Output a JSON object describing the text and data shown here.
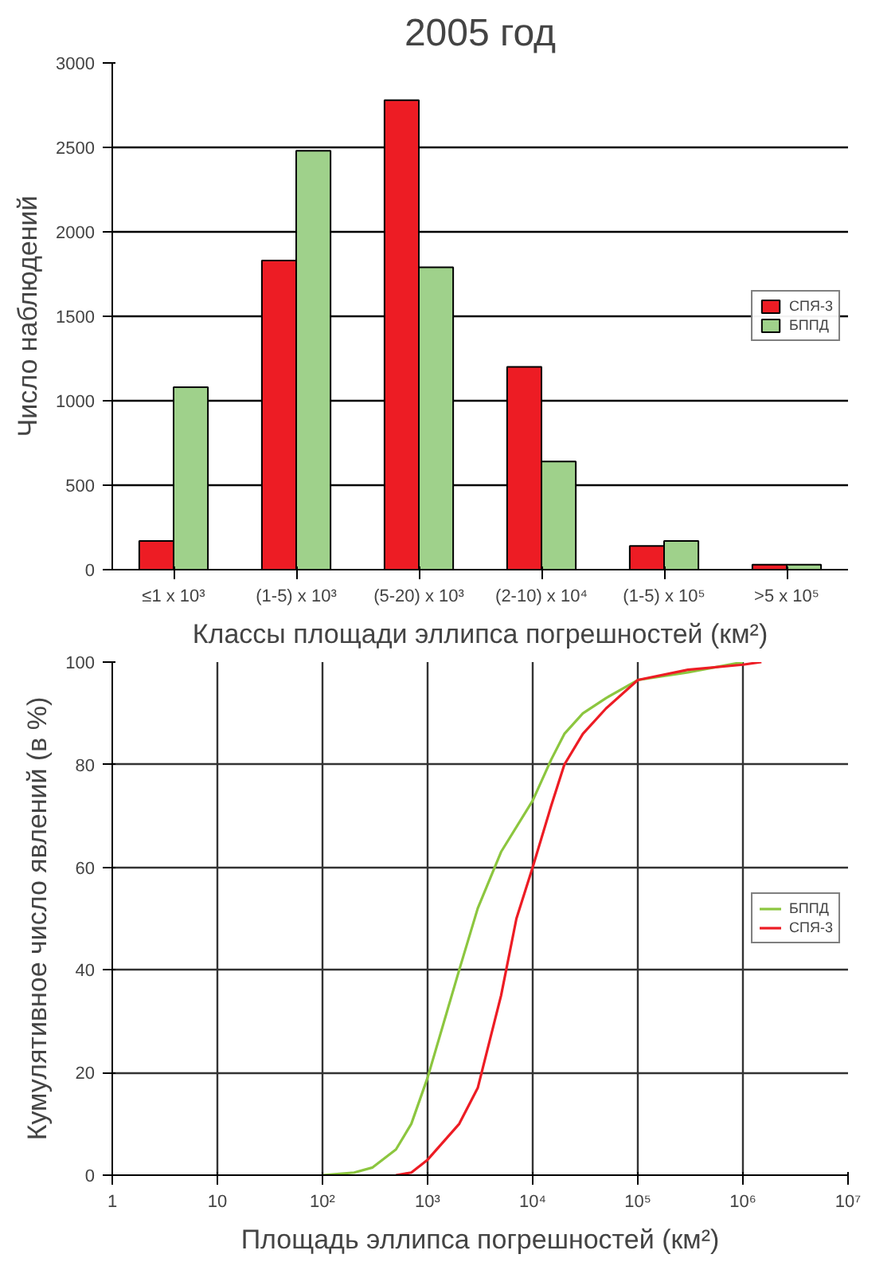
{
  "chart_data": [
    {
      "type": "bar",
      "title": "2005 год",
      "xlabel": "Классы площади эллипса погрешностей (км²)",
      "ylabel": "Число наблюдений",
      "categories": [
        "≤1 x 10³",
        "(1-5) x 10³",
        "(5-20) x 10³",
        "(2-10) x 10⁴",
        "(1-5) x 10⁵",
        ">5 x 10⁵"
      ],
      "series": [
        {
          "name": "СПЯ-3",
          "color": "#ed1c24",
          "values": [
            170,
            1830,
            2780,
            1200,
            140,
            30
          ]
        },
        {
          "name": "БППД",
          "color": "#9fd18b",
          "values": [
            1080,
            2480,
            1790,
            640,
            170,
            30
          ]
        }
      ],
      "ylim": [
        0,
        3000
      ],
      "yticks": [
        0,
        500,
        1000,
        1500,
        2000,
        2500,
        3000
      ],
      "grid": "y",
      "legend": "right"
    },
    {
      "type": "line",
      "xlabel": "Площадь эллипса погрешностей (км²)",
      "ylabel": "Кумулятивное число явлений (в %)",
      "log": "x",
      "series": [
        {
          "name": "БППД",
          "color": "#8cc63f",
          "x": [
            100,
            200,
            300,
            500,
            700,
            1000,
            2000,
            3000,
            5000,
            10000,
            15000,
            20000,
            30000,
            50000,
            100000,
            300000,
            1000000
          ],
          "values": [
            0,
            0.5,
            1.5,
            5,
            10,
            19,
            40,
            52,
            63,
            73,
            81,
            86,
            90,
            93,
            96.5,
            98,
            100
          ]
        },
        {
          "name": "СПЯ-3",
          "color": "#ed1c24",
          "x": [
            500,
            700,
            1000,
            2000,
            3000,
            5000,
            7000,
            10000,
            15000,
            20000,
            30000,
            50000,
            100000,
            300000,
            1000000,
            1500000
          ],
          "values": [
            0,
            0.5,
            3,
            10,
            17,
            35,
            50,
            60,
            72,
            80,
            86,
            91,
            96.5,
            98.5,
            99.5,
            100
          ]
        }
      ],
      "xlim": [
        1,
        10000000
      ],
      "xticks": [
        1,
        10,
        {
          "value": 100,
          "label": "10²"
        },
        {
          "value": 1000,
          "label": "10³"
        },
        {
          "value": 10000,
          "label": "10⁴"
        },
        {
          "value": 100000,
          "label": "10⁵"
        },
        {
          "value": 1000000,
          "label": "10⁶"
        },
        {
          "value": 10000000,
          "label": "10⁷"
        }
      ],
      "ylim": [
        0,
        100
      ],
      "yticks": [
        0,
        20,
        40,
        60,
        80,
        100
      ],
      "grid": true,
      "legend": "right"
    }
  ]
}
